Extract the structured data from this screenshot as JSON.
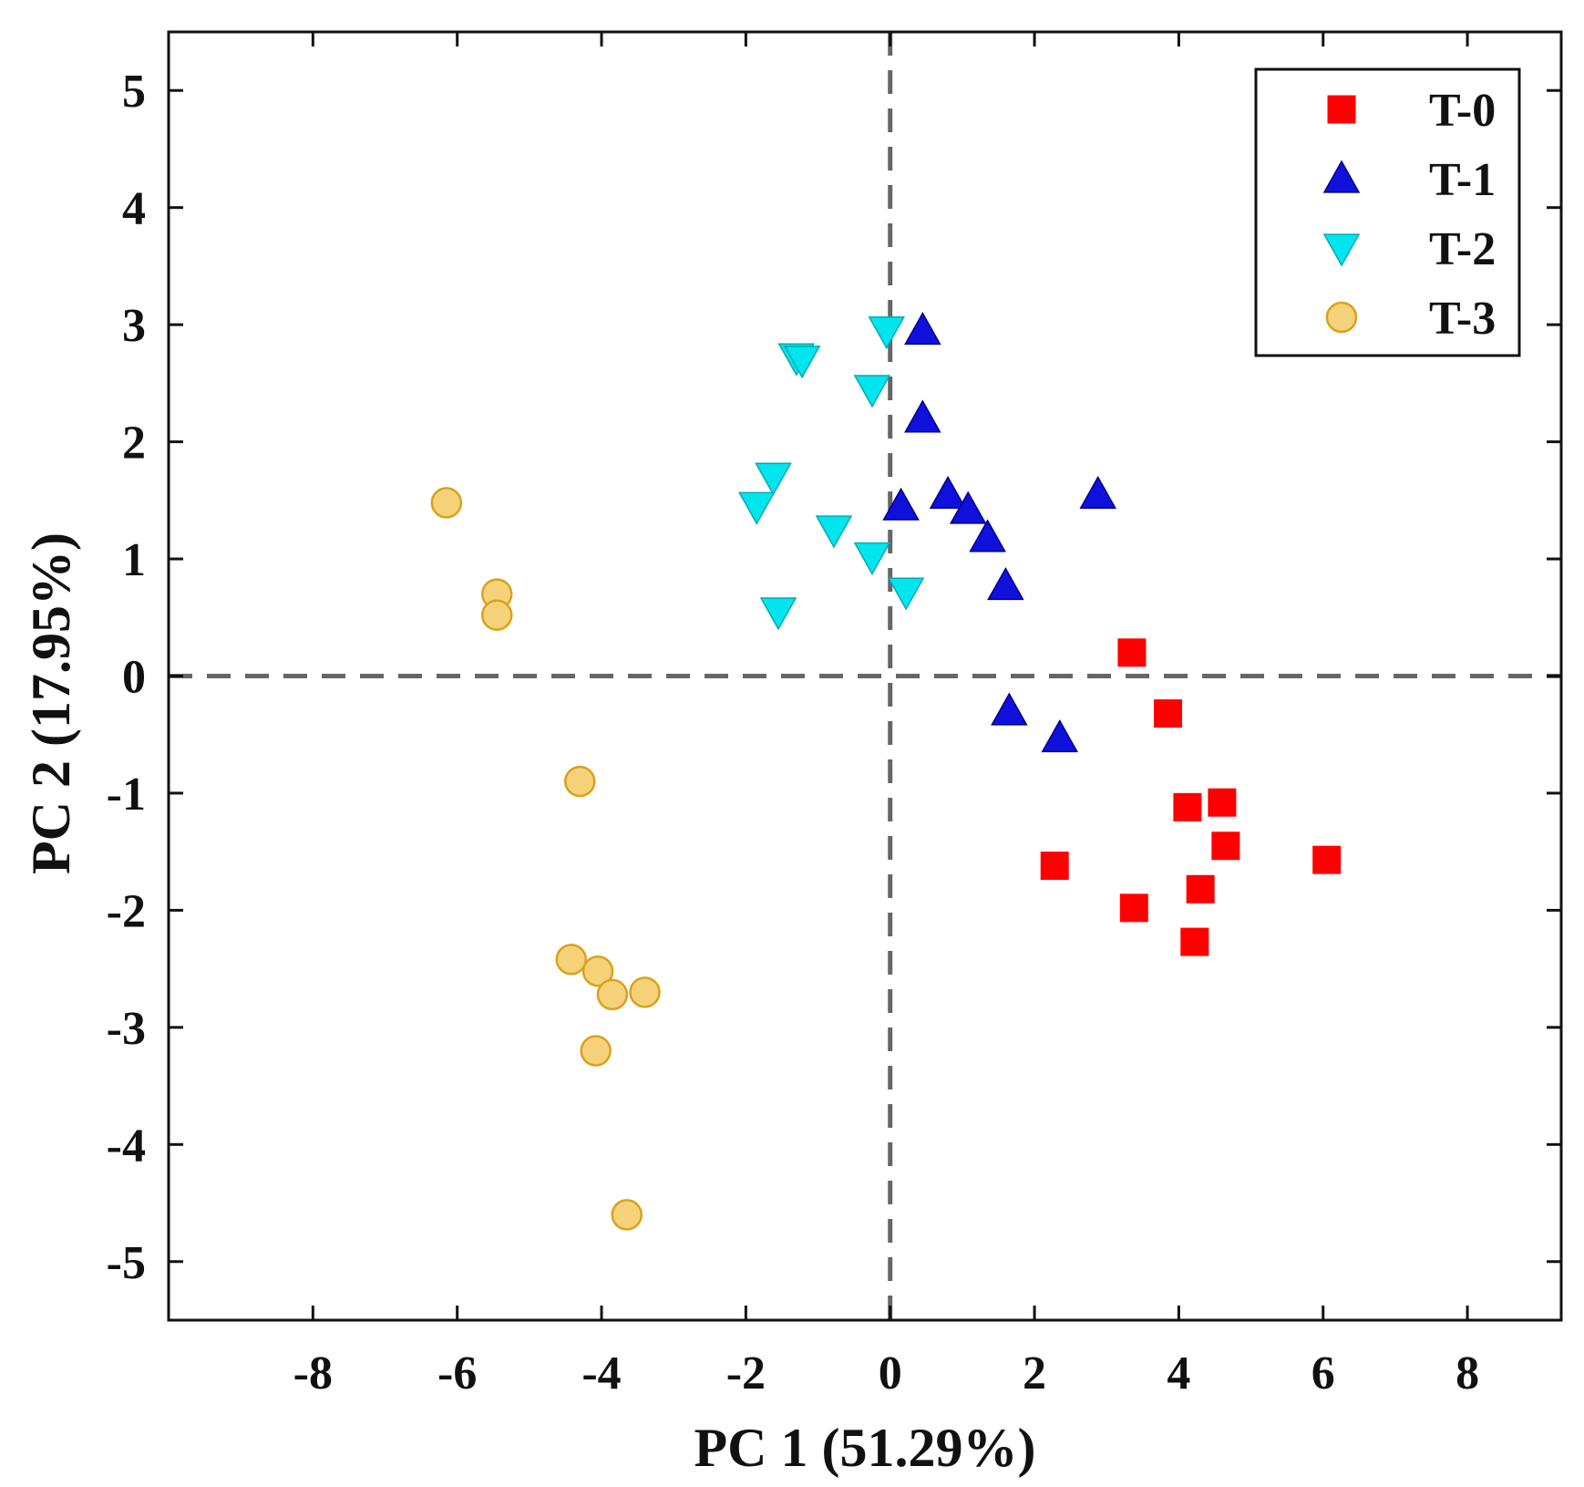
{
  "chart_data": {
    "type": "scatter",
    "title": "",
    "xlabel": "PC 1 (51.29%)",
    "ylabel": "PC 2 (17.95%)",
    "xlim": [
      -10,
      9.3
    ],
    "ylim": [
      -5.5,
      5.5
    ],
    "xticks": [
      -8,
      -6,
      -4,
      -2,
      0,
      2,
      4,
      6,
      8
    ],
    "yticks": [
      -5,
      -4,
      -3,
      -2,
      -1,
      0,
      1,
      2,
      3,
      4,
      5
    ],
    "grid": false,
    "reference_lines": {
      "x": 0,
      "y": 0,
      "style": "dashed"
    },
    "legend_position": "top-right",
    "series": [
      {
        "name": "T-0",
        "marker": "square",
        "color": "#ff0000",
        "points": [
          [
            3.35,
            0.2
          ],
          [
            3.85,
            -0.32
          ],
          [
            4.12,
            -1.12
          ],
          [
            4.6,
            -1.08
          ],
          [
            4.65,
            -1.45
          ],
          [
            4.3,
            -1.82
          ],
          [
            2.28,
            -1.62
          ],
          [
            3.38,
            -1.98
          ],
          [
            4.22,
            -2.27
          ],
          [
            6.05,
            -1.57
          ]
        ]
      },
      {
        "name": "T-1",
        "marker": "triangle-up",
        "color": "#1010dd",
        "points": [
          [
            0.45,
            2.95
          ],
          [
            0.45,
            2.2
          ],
          [
            0.15,
            1.45
          ],
          [
            0.8,
            1.55
          ],
          [
            1.08,
            1.42
          ],
          [
            1.35,
            1.18
          ],
          [
            1.6,
            0.77
          ],
          [
            2.88,
            1.55
          ],
          [
            1.65,
            -0.3
          ],
          [
            2.35,
            -0.53
          ]
        ]
      },
      {
        "name": "T-2",
        "marker": "triangle-down",
        "color": "#00e5ee",
        "points": [
          [
            -0.05,
            2.95
          ],
          [
            -1.3,
            2.72
          ],
          [
            -1.22,
            2.7
          ],
          [
            -0.25,
            2.45
          ],
          [
            -1.62,
            1.7
          ],
          [
            -1.85,
            1.45
          ],
          [
            -0.78,
            1.25
          ],
          [
            -0.25,
            1.02
          ],
          [
            0.22,
            0.72
          ],
          [
            -1.55,
            0.55
          ]
        ]
      },
      {
        "name": "T-3",
        "marker": "circle",
        "color": "#f5d27a",
        "edge_color": "#d9a21c",
        "points": [
          [
            -6.15,
            1.48
          ],
          [
            -5.45,
            0.7
          ],
          [
            -5.45,
            0.52
          ],
          [
            -4.3,
            -0.9
          ],
          [
            -4.42,
            -2.42
          ],
          [
            -4.05,
            -2.52
          ],
          [
            -3.85,
            -2.72
          ],
          [
            -3.4,
            -2.7
          ],
          [
            -4.08,
            -3.2
          ],
          [
            -3.65,
            -4.6
          ]
        ]
      }
    ]
  }
}
